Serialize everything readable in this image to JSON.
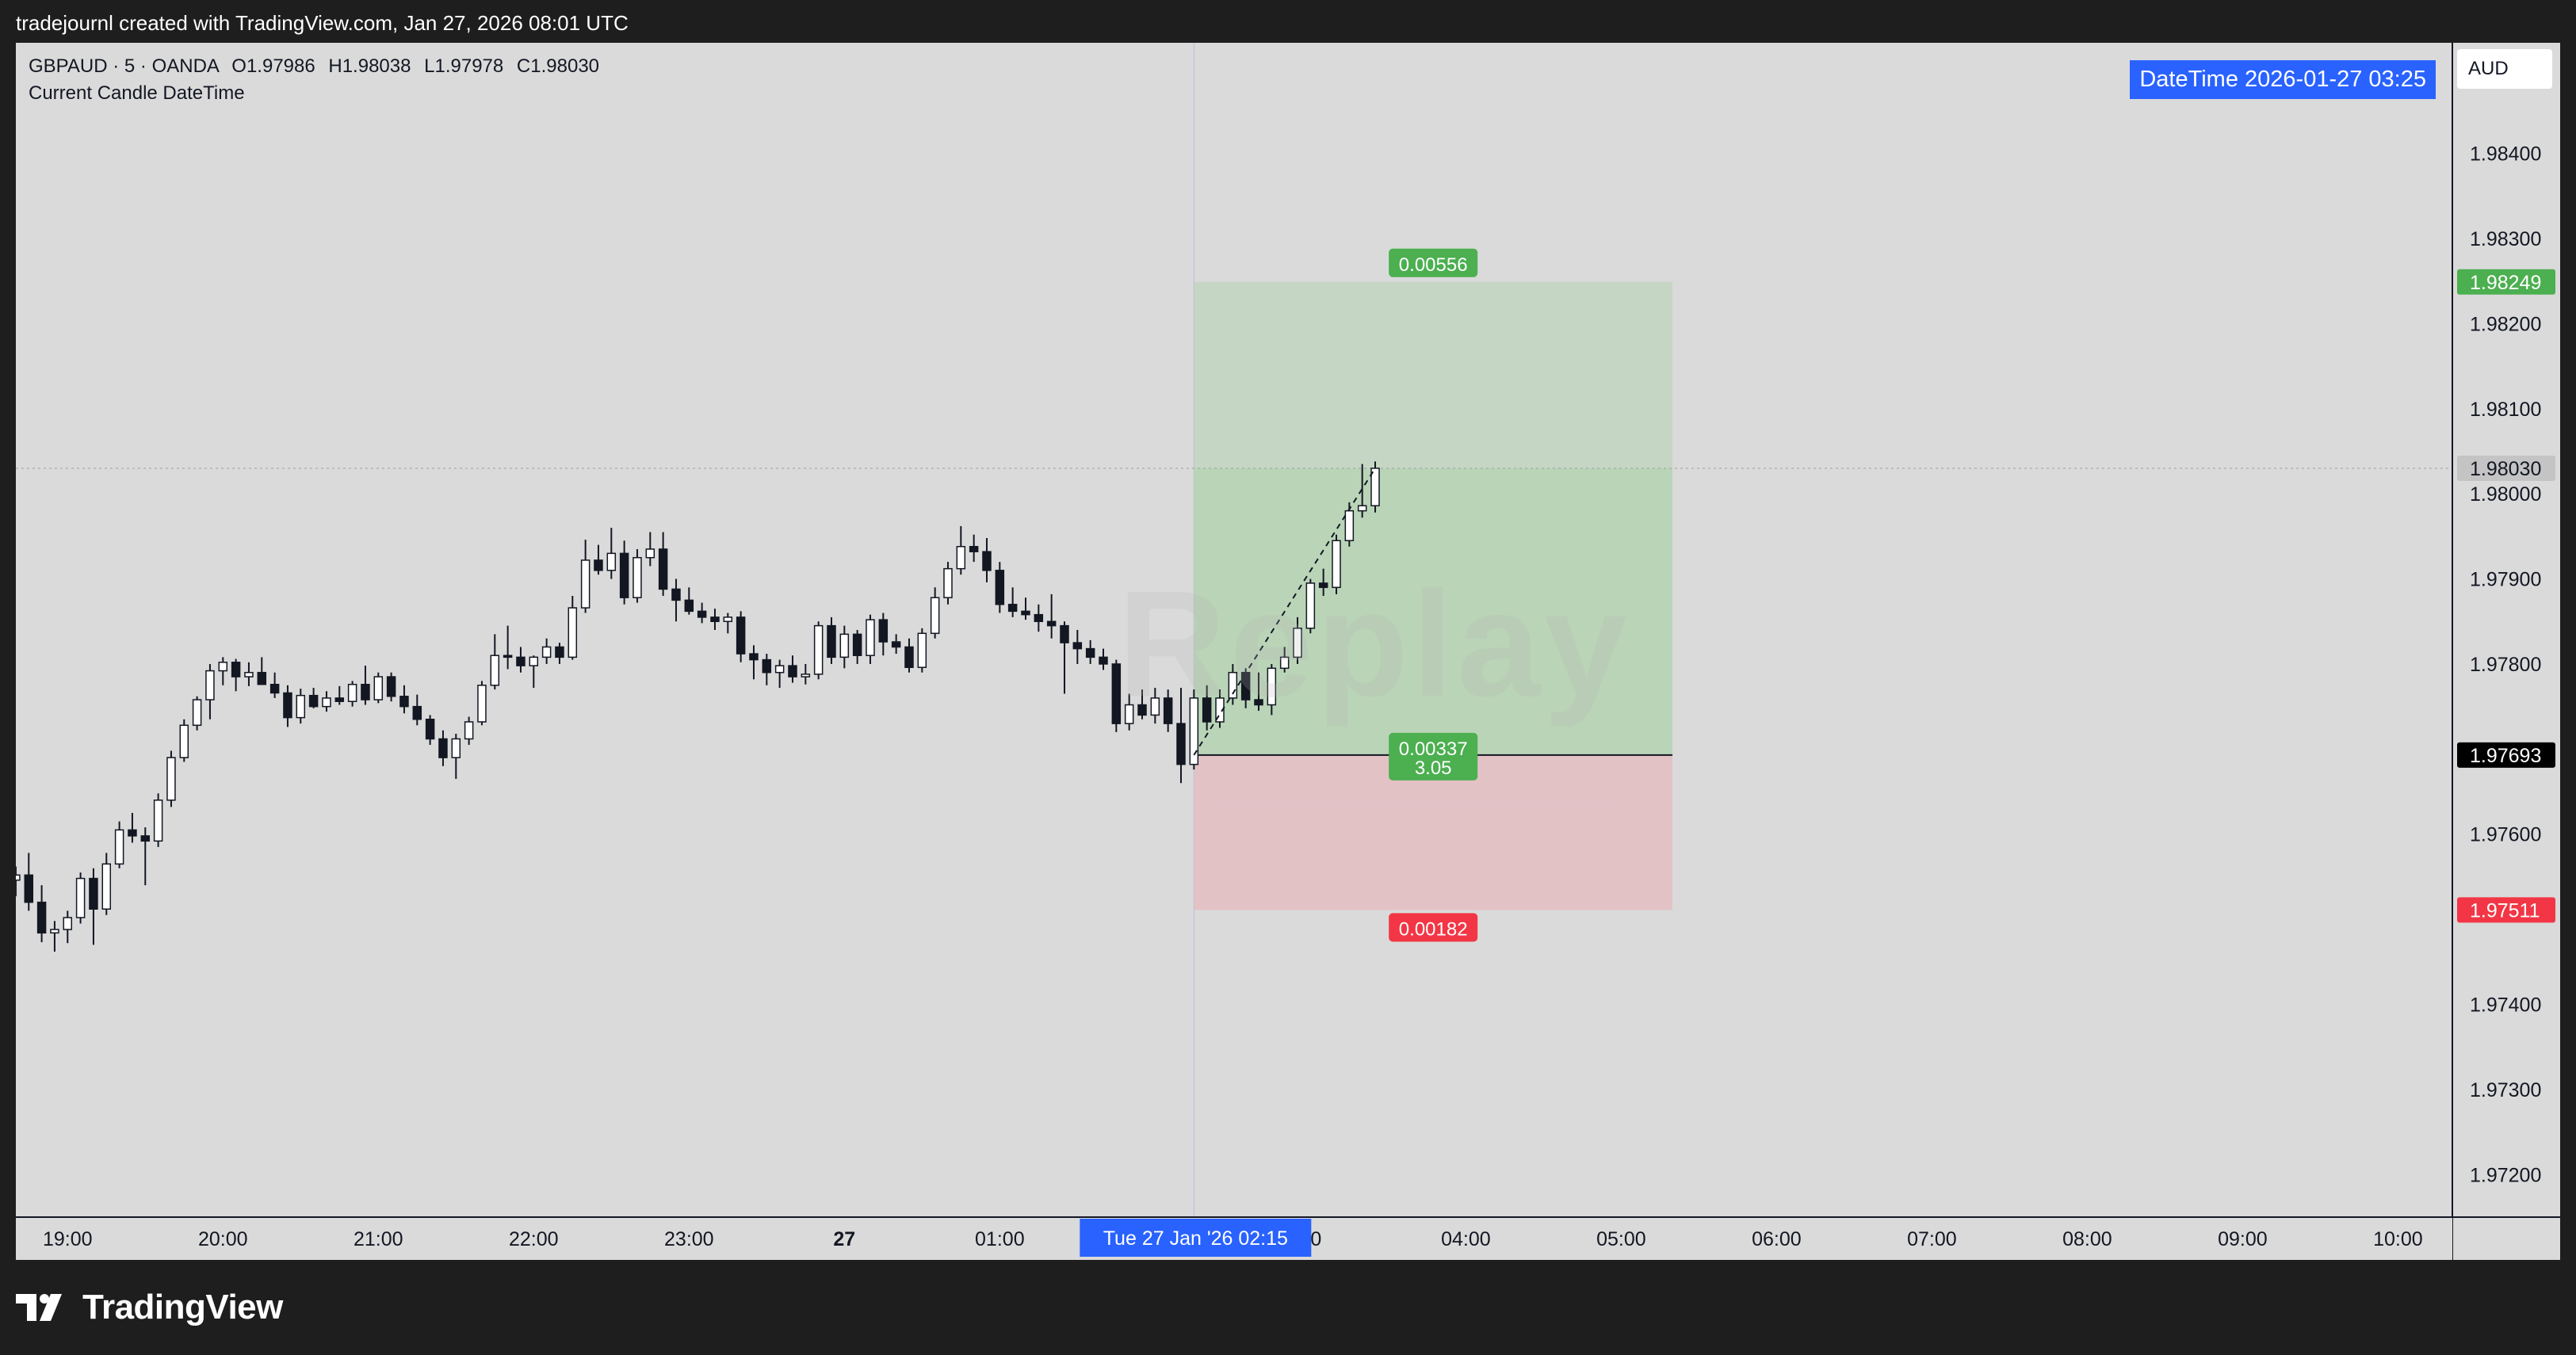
{
  "topbar": {
    "text": "tradejournl created with TradingView.com, Jan 27, 2026 08:01 UTC"
  },
  "legend": {
    "title": "GBPAUD · 5 · OANDA",
    "open": "O1.97986",
    "high": "H1.98038",
    "low": "L1.97978",
    "close": "C1.98030",
    "indicator": "Current Candle DateTime"
  },
  "datetime_label": "DateTime 2026-01-27 03:25",
  "currency": "AUD",
  "watermark": "Replay",
  "footer": {
    "brand": "TradingView"
  },
  "colors": {
    "background": "#dadada",
    "up_candle": "#ffffff",
    "down_candle": "#131722",
    "profit_zone": "#b6d3b3",
    "loss_zone": "#e3bfc3",
    "profit_badge": "#4caf50",
    "loss_badge": "#f23645",
    "crosshair_label": "#2962ff"
  },
  "chart_data": {
    "type": "candlestick",
    "symbol": "GBPAUD",
    "timeframe": "5",
    "broker": "OANDA",
    "ylim": [
      1.9715,
      1.9853
    ],
    "y_ticks": [
      "1.98400",
      "1.98300",
      "1.98200",
      "1.98100",
      "1.98000",
      "1.97900",
      "1.97800",
      "1.97600",
      "1.97400",
      "1.97300",
      "1.97200"
    ],
    "y_tick_values": [
      1.984,
      1.983,
      1.982,
      1.981,
      1.98,
      1.979,
      1.978,
      1.976,
      1.974,
      1.973,
      1.972
    ],
    "x_ticks": [
      "19:00",
      "20:00",
      "21:00",
      "22:00",
      "23:00",
      "27",
      "01:00",
      "00",
      "04:00",
      "05:00",
      "06:00",
      "07:00",
      "08:00",
      "09:00",
      "10:00"
    ],
    "x_tick_hours": [
      19,
      20,
      21,
      22,
      23,
      24,
      25,
      27,
      28,
      29,
      30,
      31,
      32,
      33,
      34
    ],
    "x_range_hours": [
      18.667,
      34.35
    ],
    "crosshair_time_label": "Tue 27 Jan '26   02:15",
    "crosshair_hour": 26.25,
    "position": {
      "type": "long",
      "entry": 1.97693,
      "target": 1.98249,
      "stop": 1.97511,
      "start_hour": 26.25,
      "end_hour": 29.33,
      "target_label": "0.00556",
      "stop_label": "0.00182",
      "entry_label": "0.00337",
      "ratio_label": "3.05",
      "target_price_label": "1.98249",
      "entry_price_label": "1.97693",
      "stop_price_label": "1.97511"
    },
    "last_price": 1.9803,
    "last_price_label": "1.98030",
    "candles": [
      {
        "t": "18:40",
        "o": 1.97546,
        "h": 1.97562,
        "l": 1.97527,
        "c": 1.97552
      },
      {
        "t": "18:45",
        "o": 1.97552,
        "h": 1.97578,
        "l": 1.9751,
        "c": 1.9752
      },
      {
        "t": "18:50",
        "o": 1.9752,
        "h": 1.9754,
        "l": 1.97473,
        "c": 1.97484
      },
      {
        "t": "18:55",
        "o": 1.97484,
        "h": 1.97498,
        "l": 1.97462,
        "c": 1.97488
      },
      {
        "t": "19:00",
        "o": 1.97488,
        "h": 1.9751,
        "l": 1.97472,
        "c": 1.97502
      },
      {
        "t": "19:05",
        "o": 1.97502,
        "h": 1.97555,
        "l": 1.97495,
        "c": 1.97548
      },
      {
        "t": "19:10",
        "o": 1.97548,
        "h": 1.9756,
        "l": 1.9747,
        "c": 1.97512
      },
      {
        "t": "19:15",
        "o": 1.97512,
        "h": 1.97578,
        "l": 1.97505,
        "c": 1.97565
      },
      {
        "t": "19:20",
        "o": 1.97565,
        "h": 1.97615,
        "l": 1.9756,
        "c": 1.97605
      },
      {
        "t": "19:25",
        "o": 1.97605,
        "h": 1.97625,
        "l": 1.9759,
        "c": 1.97598
      },
      {
        "t": "19:30",
        "o": 1.97598,
        "h": 1.97608,
        "l": 1.9754,
        "c": 1.97592
      },
      {
        "t": "19:35",
        "o": 1.97592,
        "h": 1.97648,
        "l": 1.97585,
        "c": 1.9764
      },
      {
        "t": "19:40",
        "o": 1.9764,
        "h": 1.97698,
        "l": 1.97632,
        "c": 1.9769
      },
      {
        "t": "19:45",
        "o": 1.9769,
        "h": 1.97735,
        "l": 1.97685,
        "c": 1.97728
      },
      {
        "t": "19:50",
        "o": 1.97728,
        "h": 1.97762,
        "l": 1.97722,
        "c": 1.97758
      },
      {
        "t": "19:55",
        "o": 1.97758,
        "h": 1.978,
        "l": 1.97735,
        "c": 1.97792
      },
      {
        "t": "20:00",
        "o": 1.97792,
        "h": 1.97808,
        "l": 1.97775,
        "c": 1.97802
      },
      {
        "t": "20:05",
        "o": 1.97802,
        "h": 1.97806,
        "l": 1.97768,
        "c": 1.97785
      },
      {
        "t": "20:10",
        "o": 1.97785,
        "h": 1.97802,
        "l": 1.97774,
        "c": 1.9779
      },
      {
        "t": "20:15",
        "o": 1.9779,
        "h": 1.97808,
        "l": 1.97778,
        "c": 1.97776
      },
      {
        "t": "20:20",
        "o": 1.97776,
        "h": 1.9779,
        "l": 1.9776,
        "c": 1.97766
      },
      {
        "t": "20:25",
        "o": 1.97766,
        "h": 1.97775,
        "l": 1.97726,
        "c": 1.97737
      },
      {
        "t": "20:30",
        "o": 1.97737,
        "h": 1.97771,
        "l": 1.9773,
        "c": 1.97763
      },
      {
        "t": "20:35",
        "o": 1.97763,
        "h": 1.97772,
        "l": 1.97748,
        "c": 1.9775
      },
      {
        "t": "20:40",
        "o": 1.9775,
        "h": 1.97768,
        "l": 1.97744,
        "c": 1.9776
      },
      {
        "t": "20:45",
        "o": 1.9776,
        "h": 1.97774,
        "l": 1.97752,
        "c": 1.97756
      },
      {
        "t": "20:50",
        "o": 1.97756,
        "h": 1.9778,
        "l": 1.9775,
        "c": 1.97776
      },
      {
        "t": "20:55",
        "o": 1.97776,
        "h": 1.97798,
        "l": 1.97752,
        "c": 1.97758
      },
      {
        "t": "21:00",
        "o": 1.97758,
        "h": 1.9779,
        "l": 1.97754,
        "c": 1.97785
      },
      {
        "t": "21:05",
        "o": 1.97785,
        "h": 1.9779,
        "l": 1.97756,
        "c": 1.97762
      },
      {
        "t": "21:10",
        "o": 1.97762,
        "h": 1.97775,
        "l": 1.97742,
        "c": 1.9775
      },
      {
        "t": "21:15",
        "o": 1.9775,
        "h": 1.97764,
        "l": 1.97728,
        "c": 1.97735
      },
      {
        "t": "21:20",
        "o": 1.97735,
        "h": 1.9774,
        "l": 1.97705,
        "c": 1.97712
      },
      {
        "t": "21:25",
        "o": 1.97712,
        "h": 1.97722,
        "l": 1.9768,
        "c": 1.9769
      },
      {
        "t": "21:30",
        "o": 1.9769,
        "h": 1.97718,
        "l": 1.97665,
        "c": 1.97712
      },
      {
        "t": "21:35",
        "o": 1.97712,
        "h": 1.97738,
        "l": 1.97705,
        "c": 1.97732
      },
      {
        "t": "21:40",
        "o": 1.97732,
        "h": 1.9778,
        "l": 1.97728,
        "c": 1.97775
      },
      {
        "t": "21:45",
        "o": 1.97775,
        "h": 1.97835,
        "l": 1.9777,
        "c": 1.9781
      },
      {
        "t": "21:50",
        "o": 1.9781,
        "h": 1.97845,
        "l": 1.97794,
        "c": 1.97808
      },
      {
        "t": "21:55",
        "o": 1.97808,
        "h": 1.9782,
        "l": 1.9779,
        "c": 1.97798
      },
      {
        "t": "22:00",
        "o": 1.97798,
        "h": 1.9781,
        "l": 1.97772,
        "c": 1.97808
      },
      {
        "t": "22:05",
        "o": 1.97808,
        "h": 1.9783,
        "l": 1.978,
        "c": 1.9782
      },
      {
        "t": "22:10",
        "o": 1.9782,
        "h": 1.97825,
        "l": 1.978,
        "c": 1.97808
      },
      {
        "t": "22:15",
        "o": 1.97808,
        "h": 1.9788,
        "l": 1.97805,
        "c": 1.97866
      },
      {
        "t": "22:20",
        "o": 1.97866,
        "h": 1.97946,
        "l": 1.9786,
        "c": 1.97922
      },
      {
        "t": "22:25",
        "o": 1.97922,
        "h": 1.9794,
        "l": 1.97905,
        "c": 1.9791
      },
      {
        "t": "22:30",
        "o": 1.9791,
        "h": 1.9796,
        "l": 1.979,
        "c": 1.9793
      },
      {
        "t": "22:35",
        "o": 1.9793,
        "h": 1.97945,
        "l": 1.9787,
        "c": 1.97878
      },
      {
        "t": "22:40",
        "o": 1.97878,
        "h": 1.97935,
        "l": 1.97872,
        "c": 1.97925
      },
      {
        "t": "22:45",
        "o": 1.97925,
        "h": 1.97955,
        "l": 1.97915,
        "c": 1.97935
      },
      {
        "t": "22:50",
        "o": 1.97935,
        "h": 1.97955,
        "l": 1.9788,
        "c": 1.97888
      },
      {
        "t": "22:55",
        "o": 1.97888,
        "h": 1.979,
        "l": 1.9785,
        "c": 1.97875
      },
      {
        "t": "23:00",
        "o": 1.97875,
        "h": 1.9789,
        "l": 1.97858,
        "c": 1.97862
      },
      {
        "t": "23:05",
        "o": 1.97862,
        "h": 1.97872,
        "l": 1.97848,
        "c": 1.97855
      },
      {
        "t": "23:10",
        "o": 1.97855,
        "h": 1.97865,
        "l": 1.9784,
        "c": 1.9785
      },
      {
        "t": "23:15",
        "o": 1.9785,
        "h": 1.9786,
        "l": 1.97836,
        "c": 1.97855
      },
      {
        "t": "23:20",
        "o": 1.97855,
        "h": 1.97862,
        "l": 1.97802,
        "c": 1.97812
      },
      {
        "t": "23:25",
        "o": 1.97812,
        "h": 1.97822,
        "l": 1.97782,
        "c": 1.97805
      },
      {
        "t": "23:30",
        "o": 1.97805,
        "h": 1.97812,
        "l": 1.97775,
        "c": 1.9779
      },
      {
        "t": "23:35",
        "o": 1.9779,
        "h": 1.97805,
        "l": 1.97772,
        "c": 1.97798
      },
      {
        "t": "23:40",
        "o": 1.97798,
        "h": 1.9781,
        "l": 1.97778,
        "c": 1.97785
      },
      {
        "t": "23:45",
        "o": 1.97785,
        "h": 1.978,
        "l": 1.97776,
        "c": 1.97788
      },
      {
        "t": "23:50",
        "o": 1.97788,
        "h": 1.9785,
        "l": 1.97782,
        "c": 1.97845
      },
      {
        "t": "23:55",
        "o": 1.97845,
        "h": 1.97855,
        "l": 1.978,
        "c": 1.97808
      },
      {
        "t": "00:00",
        "o": 1.97808,
        "h": 1.97845,
        "l": 1.97795,
        "c": 1.97835
      },
      {
        "t": "00:05",
        "o": 1.97835,
        "h": 1.9784,
        "l": 1.978,
        "c": 1.9781
      },
      {
        "t": "00:10",
        "o": 1.9781,
        "h": 1.97858,
        "l": 1.978,
        "c": 1.97852
      },
      {
        "t": "00:15",
        "o": 1.97852,
        "h": 1.9786,
        "l": 1.9781,
        "c": 1.97826
      },
      {
        "t": "00:20",
        "o": 1.97826,
        "h": 1.97835,
        "l": 1.97812,
        "c": 1.9782
      },
      {
        "t": "00:25",
        "o": 1.9782,
        "h": 1.9783,
        "l": 1.9779,
        "c": 1.97796
      },
      {
        "t": "00:30",
        "o": 1.97796,
        "h": 1.97842,
        "l": 1.9779,
        "c": 1.97836
      },
      {
        "t": "00:35",
        "o": 1.97836,
        "h": 1.9789,
        "l": 1.9783,
        "c": 1.97878
      },
      {
        "t": "00:40",
        "o": 1.97878,
        "h": 1.9792,
        "l": 1.9787,
        "c": 1.97912
      },
      {
        "t": "00:45",
        "o": 1.97912,
        "h": 1.97962,
        "l": 1.97905,
        "c": 1.97938
      },
      {
        "t": "00:50",
        "o": 1.97938,
        "h": 1.97952,
        "l": 1.9792,
        "c": 1.97932
      },
      {
        "t": "00:55",
        "o": 1.97932,
        "h": 1.97948,
        "l": 1.97896,
        "c": 1.9791
      },
      {
        "t": "01:00",
        "o": 1.9791,
        "h": 1.9792,
        "l": 1.9786,
        "c": 1.9787
      },
      {
        "t": "01:05",
        "o": 1.9787,
        "h": 1.9789,
        "l": 1.97855,
        "c": 1.97862
      },
      {
        "t": "01:10",
        "o": 1.97862,
        "h": 1.97878,
        "l": 1.97852,
        "c": 1.97858
      },
      {
        "t": "01:15",
        "o": 1.97858,
        "h": 1.9787,
        "l": 1.97838,
        "c": 1.9785
      },
      {
        "t": "01:20",
        "o": 1.9785,
        "h": 1.97882,
        "l": 1.9783,
        "c": 1.97845
      },
      {
        "t": "01:25",
        "o": 1.97845,
        "h": 1.9785,
        "l": 1.97765,
        "c": 1.97825
      },
      {
        "t": "01:30",
        "o": 1.97825,
        "h": 1.9784,
        "l": 1.978,
        "c": 1.97818
      },
      {
        "t": "01:35",
        "o": 1.97818,
        "h": 1.97828,
        "l": 1.978,
        "c": 1.97808
      },
      {
        "t": "01:40",
        "o": 1.97808,
        "h": 1.97818,
        "l": 1.97793,
        "c": 1.978
      },
      {
        "t": "01:45",
        "o": 1.978,
        "h": 1.97805,
        "l": 1.9772,
        "c": 1.9773
      },
      {
        "t": "01:50",
        "o": 1.9773,
        "h": 1.97765,
        "l": 1.97722,
        "c": 1.97752
      },
      {
        "t": "01:55",
        "o": 1.97752,
        "h": 1.9777,
        "l": 1.97735,
        "c": 1.9774
      },
      {
        "t": "02:00",
        "o": 1.9774,
        "h": 1.97772,
        "l": 1.9773,
        "c": 1.9776
      },
      {
        "t": "02:05",
        "o": 1.9776,
        "h": 1.9777,
        "l": 1.9772,
        "c": 1.9773
      },
      {
        "t": "02:10",
        "o": 1.9773,
        "h": 1.97772,
        "l": 1.9766,
        "c": 1.97682
      },
      {
        "t": "02:15",
        "o": 1.97682,
        "h": 1.9777,
        "l": 1.97676,
        "c": 1.9776
      },
      {
        "t": "02:20",
        "o": 1.9776,
        "h": 1.97775,
        "l": 1.97722,
        "c": 1.97732
      },
      {
        "t": "02:25",
        "o": 1.97732,
        "h": 1.9777,
        "l": 1.97725,
        "c": 1.9776
      },
      {
        "t": "02:30",
        "o": 1.9776,
        "h": 1.978,
        "l": 1.97752,
        "c": 1.9779
      },
      {
        "t": "02:35",
        "o": 1.9779,
        "h": 1.97795,
        "l": 1.97748,
        "c": 1.97758
      },
      {
        "t": "02:40",
        "o": 1.97758,
        "h": 1.9779,
        "l": 1.97745,
        "c": 1.97752
      },
      {
        "t": "02:45",
        "o": 1.97752,
        "h": 1.978,
        "l": 1.9774,
        "c": 1.97795
      },
      {
        "t": "02:50",
        "o": 1.97795,
        "h": 1.9782,
        "l": 1.9779,
        "c": 1.97808
      },
      {
        "t": "02:55",
        "o": 1.97808,
        "h": 1.97855,
        "l": 1.978,
        "c": 1.97842
      },
      {
        "t": "03:00",
        "o": 1.97842,
        "h": 1.979,
        "l": 1.97836,
        "c": 1.97895
      },
      {
        "t": "03:05",
        "o": 1.97895,
        "h": 1.97912,
        "l": 1.9788,
        "c": 1.9789
      },
      {
        "t": "03:10",
        "o": 1.9789,
        "h": 1.97952,
        "l": 1.97882,
        "c": 1.97945
      },
      {
        "t": "03:15",
        "o": 1.97945,
        "h": 1.9799,
        "l": 1.97938,
        "c": 1.9798
      },
      {
        "t": "03:20",
        "o": 1.9798,
        "h": 1.98035,
        "l": 1.97972,
        "c": 1.97986
      },
      {
        "t": "03:25",
        "o": 1.97986,
        "h": 1.98038,
        "l": 1.97978,
        "c": 1.9803
      }
    ]
  }
}
